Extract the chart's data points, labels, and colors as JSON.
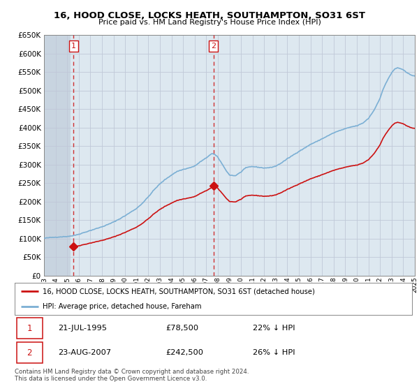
{
  "title": "16, HOOD CLOSE, LOCKS HEATH, SOUTHAMPTON, SO31 6ST",
  "subtitle": "Price paid vs. HM Land Registry's House Price Index (HPI)",
  "ylim": [
    0,
    650000
  ],
  "yticks": [
    0,
    50000,
    100000,
    150000,
    200000,
    250000,
    300000,
    350000,
    400000,
    450000,
    500000,
    550000,
    600000,
    650000
  ],
  "hpi_color": "#7bafd4",
  "price_color": "#cc1111",
  "vline_color": "#cc1111",
  "grid_color": "#c0c8d8",
  "bg_color": "#dde8f0",
  "hatch_color": "#c8d4e0",
  "legend_line1": "16, HOOD CLOSE, LOCKS HEATH, SOUTHAMPTON, SO31 6ST (detached house)",
  "legend_line2": "HPI: Average price, detached house, Fareham",
  "table_row1": [
    "1",
    "21-JUL-1995",
    "£78,500",
    "22% ↓ HPI"
  ],
  "table_row2": [
    "2",
    "23-AUG-2007",
    "£242,500",
    "26% ↓ HPI"
  ],
  "footnote": "Contains HM Land Registry data © Crown copyright and database right 2024.\nThis data is licensed under the Open Government Licence v3.0.",
  "xmin": 1993,
  "xmax": 2025,
  "ann1_x": 1995.55,
  "ann1_y": 78500,
  "ann2_x": 2007.62,
  "ann2_y": 242500
}
